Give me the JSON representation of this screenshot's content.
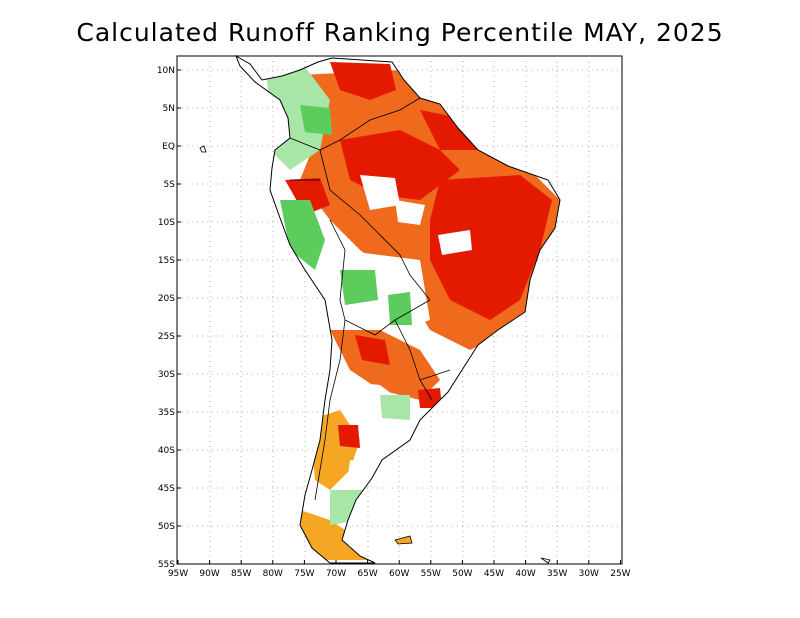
{
  "title": "Calculated Runoff Ranking Percentile MAY, 2025",
  "map": {
    "region": "South America",
    "lat_ticks": [
      "10N",
      "5N",
      "EQ",
      "5S",
      "10S",
      "15S",
      "20S",
      "25S",
      "30S",
      "35S",
      "40S",
      "45S",
      "50S",
      "55S"
    ],
    "lon_ticks": [
      "95W",
      "90W",
      "85W",
      "80W",
      "75W",
      "70W",
      "65W",
      "60W",
      "55W",
      "50W",
      "45W",
      "40W",
      "35W",
      "30W",
      "25W"
    ],
    "grid": "dotted",
    "colors": {
      "very_low": "#e31a00",
      "low": "#f06a1e",
      "below_normal": "#f5a623",
      "normal": "#ffffff",
      "above_normal": "#a8e6a8",
      "high": "#5ccc5c"
    }
  }
}
